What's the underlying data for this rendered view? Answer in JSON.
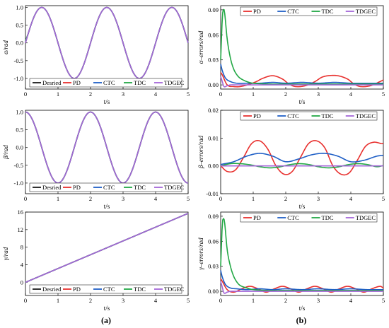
{
  "colors": {
    "Desried": "#1a1a1a",
    "PD": "#e8302e",
    "CTC": "#1f5fc6",
    "TDC": "#22a845",
    "TDGEC": "#a466d8"
  },
  "captions": {
    "a": "(a)",
    "b": "(b)"
  },
  "legend_left": [
    "Desried",
    "PD",
    "CTC",
    "TDC",
    "TDGEC"
  ],
  "legend_right": [
    "PD",
    "CTC",
    "TDC",
    "TDGEC"
  ],
  "chart_data": [
    {
      "id": "a1",
      "type": "line",
      "xlabel": "t/s",
      "ylabel": "α/rad",
      "xlim": [
        0,
        5
      ],
      "ylim": [
        -1.3,
        1.05
      ],
      "xticks": [
        "0",
        "1",
        "2",
        "3",
        "4",
        "5"
      ],
      "yticks": [
        "-1.0",
        "-0.5",
        "0.0",
        "0.5",
        "1.0"
      ],
      "grid": false,
      "legend": "bottom",
      "series": [
        {
          "name": "Desried",
          "function": "sin(pi*t)",
          "x": [
            0,
            0.5,
            1.5,
            2.5,
            3.5,
            4.5,
            5
          ],
          "y": [
            0,
            1,
            -1,
            1,
            -1,
            1,
            0
          ]
        },
        {
          "name": "PD",
          "tracks": "Desried",
          "x": [
            0,
            0.5,
            1.5,
            2.5,
            3.5,
            4.5,
            5
          ],
          "y": [
            0.05,
            1,
            -1,
            1,
            -1,
            1,
            0
          ]
        },
        {
          "name": "CTC",
          "tracks": "Desried",
          "x": [
            0,
            0.5,
            1.5,
            2.5,
            3.5,
            4.5,
            5
          ],
          "y": [
            0.05,
            1,
            -1,
            1,
            -1,
            1,
            0
          ]
        },
        {
          "name": "TDC",
          "tracks": "Desried",
          "x": [
            0,
            0.5,
            1.5,
            2.5,
            3.5,
            4.5,
            5
          ],
          "y": [
            0.05,
            1,
            -1,
            1,
            -1,
            1,
            0
          ]
        },
        {
          "name": "TDGEC",
          "tracks": "Desried",
          "x": [
            0,
            0.5,
            1.5,
            2.5,
            3.5,
            4.5,
            5
          ],
          "y": [
            0,
            1,
            -1,
            1,
            -1,
            1,
            0
          ]
        }
      ]
    },
    {
      "id": "a2",
      "type": "line",
      "xlabel": "t/s",
      "ylabel": "β/rad",
      "xlim": [
        0,
        5
      ],
      "ylim": [
        -1.3,
        1.05
      ],
      "xticks": [
        "0",
        "1",
        "2",
        "3",
        "4",
        "5"
      ],
      "yticks": [
        "-1.0",
        "-0.5",
        "0.0",
        "0.5",
        "1.0"
      ],
      "grid": false,
      "legend": "bottom",
      "series": [
        {
          "name": "Desried",
          "function": "cos(pi*t)",
          "x": [
            0,
            1,
            2,
            3,
            4,
            5
          ],
          "y": [
            1,
            -1,
            1,
            -1,
            1,
            -1
          ]
        },
        {
          "name": "PD",
          "tracks": "Desried",
          "x": [
            0,
            1,
            2,
            3,
            4,
            5
          ],
          "y": [
            1,
            -1,
            1,
            -1,
            1,
            -1
          ]
        },
        {
          "name": "CTC",
          "tracks": "Desried",
          "x": [
            0,
            1,
            2,
            3,
            4,
            5
          ],
          "y": [
            1,
            -1,
            1,
            -1,
            1,
            -1
          ]
        },
        {
          "name": "TDC",
          "tracks": "Desried",
          "x": [
            0,
            1,
            2,
            3,
            4,
            5
          ],
          "y": [
            1,
            -1,
            1,
            -1,
            1,
            -1
          ]
        },
        {
          "name": "TDGEC",
          "tracks": "Desried",
          "x": [
            0,
            1,
            2,
            3,
            4,
            5
          ],
          "y": [
            1,
            -1,
            1,
            -1,
            1,
            -1
          ]
        }
      ]
    },
    {
      "id": "a3",
      "type": "line",
      "xlabel": "t/s",
      "ylabel": "γ/rad",
      "xlim": [
        0,
        5
      ],
      "ylim": [
        -3,
        16
      ],
      "xticks": [
        "0",
        "1",
        "2",
        "3",
        "4",
        "5"
      ],
      "yticks": [
        "0",
        "4",
        "8",
        "12",
        "16"
      ],
      "grid": false,
      "legend": "bottom",
      "series": [
        {
          "name": "Desried",
          "function": "pi*t",
          "x": [
            0,
            5
          ],
          "y": [
            0,
            15.7
          ]
        },
        {
          "name": "PD",
          "tracks": "Desried",
          "x": [
            0,
            5
          ],
          "y": [
            0,
            15.7
          ]
        },
        {
          "name": "CTC",
          "tracks": "Desried",
          "x": [
            0,
            5
          ],
          "y": [
            0,
            15.7
          ]
        },
        {
          "name": "TDC",
          "tracks": "Desried",
          "x": [
            0,
            5
          ],
          "y": [
            0,
            15.7
          ]
        },
        {
          "name": "TDGEC",
          "tracks": "Desried",
          "x": [
            0,
            5
          ],
          "y": [
            0,
            15.7
          ]
        }
      ]
    },
    {
      "id": "b1",
      "type": "line",
      "xlabel": "t/s",
      "ylabel": "α–errors/rad",
      "xlim": [
        0,
        5
      ],
      "ylim": [
        -0.005,
        0.095
      ],
      "xticks": [
        "0",
        "1",
        "2",
        "3",
        "4",
        "5"
      ],
      "yticks": [
        "0.00",
        "0.03",
        "0.06",
        "0.09"
      ],
      "grid": false,
      "legend": "top",
      "series": [
        {
          "name": "PD",
          "x": [
            0,
            0.05,
            0.2,
            0.4,
            0.6,
            0.9,
            1.1,
            1.3,
            1.6,
            1.9,
            2.1,
            2.3,
            2.6,
            2.9,
            3.1,
            3.3,
            3.6,
            3.9,
            4.1,
            4.3,
            4.6,
            4.9,
            5
          ],
          "y": [
            0.015,
            0.012,
            0.0,
            -0.002,
            -0.002,
            0.001,
            0.004,
            0.008,
            0.011,
            0.007,
            0.001,
            -0.002,
            -0.001,
            0.004,
            0.009,
            0.011,
            0.011,
            0.007,
            0.001,
            -0.002,
            -0.001,
            0.004,
            0.006
          ]
        },
        {
          "name": "CTC",
          "x": [
            0,
            0.05,
            0.15,
            0.3,
            0.5,
            0.8,
            1.2,
            1.6,
            2.0,
            2.5,
            3.0,
            3.5,
            4.0,
            4.5,
            5
          ],
          "y": [
            0.025,
            0.017,
            0.008,
            0.004,
            0.002,
            0.002,
            0.002,
            0.003,
            0.002,
            0.003,
            0.002,
            0.003,
            0.002,
            0.002,
            0.002
          ]
        },
        {
          "name": "TDC",
          "x": [
            0,
            0.05,
            0.08,
            0.12,
            0.2,
            0.3,
            0.4,
            0.5,
            0.6,
            0.8,
            1.0,
            1.5,
            2.0,
            3.0,
            4.0,
            5
          ],
          "y": [
            0.03,
            0.08,
            0.09,
            0.087,
            0.055,
            0.032,
            0.019,
            0.012,
            0.008,
            0.004,
            0.002,
            0.001,
            0.001,
            0.001,
            0.001,
            0.001
          ]
        },
        {
          "name": "TDGEC",
          "x": [
            0,
            0.05,
            0.1,
            0.2,
            0.3,
            0.5,
            1.0,
            2.0,
            3.0,
            4.0,
            5
          ],
          "y": [
            0.01,
            0.004,
            -0.002,
            -0.001,
            0.0,
            0.0,
            0.0,
            0.0,
            0.0,
            0.0,
            0.0
          ]
        }
      ]
    },
    {
      "id": "b2",
      "type": "line",
      "xlabel": "t/s",
      "ylabel": "β–errors/rad",
      "xlim": [
        0,
        5
      ],
      "ylim": [
        -0.01,
        0.02
      ],
      "xticks": [
        "0",
        "1",
        "2",
        "3",
        "4",
        "5"
      ],
      "yticks": [
        "-0.01",
        "0.00",
        "0.01",
        "0.02"
      ],
      "grid": false,
      "legend": "top",
      "series": [
        {
          "name": "PD",
          "x": [
            0,
            0.2,
            0.45,
            0.7,
            0.95,
            1.2,
            1.45,
            1.7,
            1.95,
            2.2,
            2.45,
            2.7,
            2.95,
            3.2,
            3.45,
            3.7,
            3.95,
            4.2,
            4.45,
            4.7,
            4.95,
            5
          ],
          "y": [
            0.0,
            -0.002,
            -0.0015,
            0.003,
            0.008,
            0.009,
            0.006,
            0.0,
            -0.003,
            -0.002,
            0.003,
            0.008,
            0.009,
            0.0065,
            0.0,
            -0.003,
            -0.0025,
            0.002,
            0.007,
            0.0085,
            0.008,
            0.008
          ]
        },
        {
          "name": "CTC",
          "x": [
            0,
            0.4,
            0.8,
            1.2,
            1.6,
            2.0,
            2.4,
            2.8,
            3.2,
            3.6,
            4.0,
            4.4,
            4.8,
            5
          ],
          "y": [
            0.0005,
            0.0015,
            0.0035,
            0.0045,
            0.0035,
            0.0015,
            0.0025,
            0.004,
            0.0045,
            0.0035,
            0.0015,
            0.002,
            0.0035,
            0.0038
          ]
        },
        {
          "name": "TDC",
          "x": [
            0,
            0.3,
            0.6,
            0.9,
            1.2,
            1.5,
            1.8,
            2.1,
            2.4,
            2.7,
            3.0,
            3.3,
            3.6,
            3.9,
            4.2,
            4.5,
            4.8,
            5
          ],
          "y": [
            0.0,
            0.0008,
            0.0008,
            0.0004,
            -0.0003,
            -0.0007,
            -0.0004,
            0.0004,
            0.0008,
            0.0005,
            -0.0003,
            -0.0007,
            -0.0004,
            0.0004,
            0.0008,
            0.0005,
            -0.0003,
            0.0001
          ]
        },
        {
          "name": "TDGEC",
          "x": [
            0,
            1,
            2,
            3,
            4,
            5
          ],
          "y": [
            0.0,
            0.0,
            0.0,
            0.0,
            0.0,
            0.0
          ]
        }
      ]
    },
    {
      "id": "b3",
      "type": "line",
      "xlabel": "t/s",
      "ylabel": "γ–errors/rad",
      "xlim": [
        0,
        5
      ],
      "ylim": [
        -0.005,
        0.095
      ],
      "xticks": [
        "0",
        "1",
        "2",
        "3",
        "4",
        "5"
      ],
      "yticks": [
        "0.00",
        "0.03",
        "0.06",
        "0.09"
      ],
      "grid": false,
      "legend": "top",
      "series": [
        {
          "name": "PD",
          "x": [
            0,
            0.05,
            0.2,
            0.4,
            0.65,
            0.9,
            1.15,
            1.4,
            1.65,
            1.9,
            2.15,
            2.4,
            2.65,
            2.9,
            3.15,
            3.4,
            3.65,
            3.9,
            4.15,
            4.4,
            4.65,
            4.9,
            5
          ],
          "y": [
            0.015,
            0.012,
            0.002,
            -0.001,
            0.003,
            0.006,
            0.003,
            -0.001,
            0.003,
            0.006,
            0.003,
            -0.001,
            0.003,
            0.006,
            0.003,
            -0.001,
            0.003,
            0.006,
            0.003,
            -0.001,
            0.003,
            0.006,
            0.004
          ]
        },
        {
          "name": "CTC",
          "x": [
            0,
            0.05,
            0.15,
            0.3,
            0.5,
            0.8,
            1.2,
            1.6,
            2.0,
            2.5,
            3.0,
            3.5,
            4.0,
            4.5,
            5
          ],
          "y": [
            0.025,
            0.017,
            0.008,
            0.004,
            0.003,
            0.002,
            0.003,
            0.002,
            0.003,
            0.002,
            0.003,
            0.002,
            0.003,
            0.002,
            0.002
          ]
        },
        {
          "name": "TDC",
          "x": [
            0,
            0.05,
            0.08,
            0.12,
            0.2,
            0.3,
            0.4,
            0.5,
            0.6,
            0.8,
            1.0,
            1.5,
            2.0,
            3.0,
            4.0,
            5
          ],
          "y": [
            0.03,
            0.08,
            0.087,
            0.083,
            0.05,
            0.03,
            0.018,
            0.011,
            0.007,
            0.004,
            0.002,
            0.001,
            0.001,
            0.001,
            0.001,
            0.001
          ]
        },
        {
          "name": "TDGEC",
          "x": [
            0,
            0.05,
            0.1,
            0.2,
            0.3,
            0.5,
            1.0,
            2.0,
            3.0,
            4.0,
            5
          ],
          "y": [
            0.012,
            0.005,
            -0.002,
            -0.001,
            0.0,
            0.0,
            0.0,
            0.0,
            0.0,
            0.0,
            0.0
          ]
        }
      ]
    }
  ]
}
